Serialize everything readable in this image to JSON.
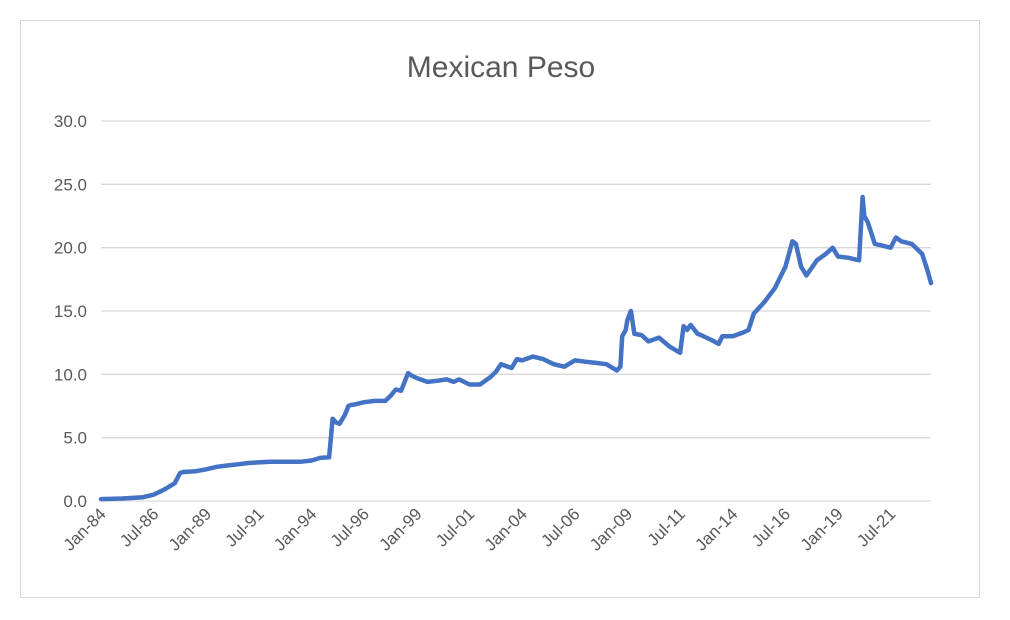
{
  "chart_data": {
    "type": "line",
    "title": "Mexican Peso",
    "xlabel": "",
    "ylabel": "",
    "ylim": [
      0,
      30
    ],
    "yticks": [
      "0.0",
      "5.0",
      "10.0",
      "15.0",
      "20.0",
      "25.0",
      "30.0"
    ],
    "xticks": [
      "Jan-84",
      "Jul-86",
      "Jan-89",
      "Jul-91",
      "Jan-94",
      "Jul-96",
      "Jan-99",
      "Jul-01",
      "Jan-04",
      "Jul-06",
      "Jan-09",
      "Jul-11",
      "Jan-14",
      "Jul-16",
      "Jan-19",
      "Jul-21"
    ],
    "grid": true,
    "legend": "none",
    "line_color": "#4472c4",
    "series": [
      {
        "x": [
          "Jan-84",
          "Jan-85",
          "Jan-86",
          "Jul-86",
          "Jan-87",
          "Jul-87",
          "Oct-87",
          "Dec-87",
          "Jan-88",
          "Jul-88",
          "Jan-89",
          "Jul-89",
          "Jan-90",
          "Jul-90",
          "Jan-91",
          "Jul-91",
          "Jan-92",
          "Jul-92",
          "Jan-93",
          "Jul-93",
          "Jan-94",
          "Jun-94",
          "Nov-94",
          "Dec-94",
          "Jan-95",
          "Mar-95",
          "May-95",
          "Aug-95",
          "Oct-95",
          "Dec-95",
          "Jan-96",
          "Jul-96",
          "Jan-97",
          "Jul-97",
          "Oct-97",
          "Jan-98",
          "Apr-98",
          "Aug-98",
          "Oct-98",
          "Jan-99",
          "Jul-99",
          "Jan-00",
          "Jun-00",
          "Oct-00",
          "Jan-01",
          "Jul-01",
          "Jan-02",
          "Jul-02",
          "Oct-02",
          "Jan-03",
          "Mar-03",
          "Jul-03",
          "Oct-03",
          "Jan-04",
          "Jul-04",
          "Jan-05",
          "Jul-05",
          "Jan-06",
          "Jul-06",
          "Jan-07",
          "Jul-07",
          "Jan-08",
          "Jul-08",
          "Sep-08",
          "Oct-08",
          "Dec-08",
          "Jan-09",
          "Mar-09",
          "May-09",
          "Sep-09",
          "Jan-10",
          "Jul-10",
          "Jan-11",
          "Jul-11",
          "Sep-11",
          "Nov-11",
          "Jan-12",
          "May-12",
          "Jul-12",
          "Jan-13",
          "May-13",
          "Jul-13",
          "Jan-14",
          "Jul-14",
          "Oct-14",
          "Jan-15",
          "Jul-15",
          "Jan-16",
          "Jul-16",
          "Nov-16",
          "Jan-17",
          "Apr-17",
          "Jul-17",
          "Jan-18",
          "Jun-18",
          "Oct-18",
          "Jan-19",
          "Jul-19",
          "Jan-20",
          "Mar-20",
          "Apr-20",
          "Jun-20",
          "Oct-20",
          "Jan-21",
          "Jul-21",
          "Oct-21",
          "Jan-22",
          "Jul-22",
          "Jan-23",
          "Apr-23",
          "Jun-23"
        ],
        "values": [
          0.15,
          0.2,
          0.3,
          0.5,
          0.9,
          1.4,
          2.2,
          2.3,
          2.3,
          2.35,
          2.5,
          2.7,
          2.8,
          2.9,
          3.0,
          3.05,
          3.1,
          3.1,
          3.1,
          3.1,
          3.2,
          3.4,
          3.45,
          5.0,
          6.5,
          6.2,
          6.1,
          6.8,
          7.5,
          7.6,
          7.6,
          7.8,
          7.9,
          7.9,
          8.3,
          8.8,
          8.7,
          10.1,
          9.9,
          9.7,
          9.4,
          9.5,
          9.6,
          9.4,
          9.6,
          9.2,
          9.2,
          9.8,
          10.2,
          10.8,
          10.7,
          10.5,
          11.2,
          11.1,
          11.4,
          11.2,
          10.8,
          10.6,
          11.1,
          11.0,
          10.9,
          10.8,
          10.3,
          10.6,
          13.0,
          13.5,
          14.3,
          15.0,
          13.2,
          13.1,
          12.6,
          12.9,
          12.2,
          11.7,
          13.8,
          13.5,
          13.9,
          13.2,
          13.1,
          12.7,
          12.4,
          13.0,
          13.0,
          13.3,
          13.5,
          14.8,
          15.7,
          16.8,
          18.5,
          20.5,
          20.3,
          18.5,
          17.8,
          19.0,
          19.5,
          20.0,
          19.3,
          19.2,
          19.0,
          24.0,
          22.5,
          22.0,
          20.3,
          20.2,
          20.0,
          20.8,
          20.5,
          20.3,
          19.5,
          18.2,
          17.2
        ]
      }
    ]
  }
}
